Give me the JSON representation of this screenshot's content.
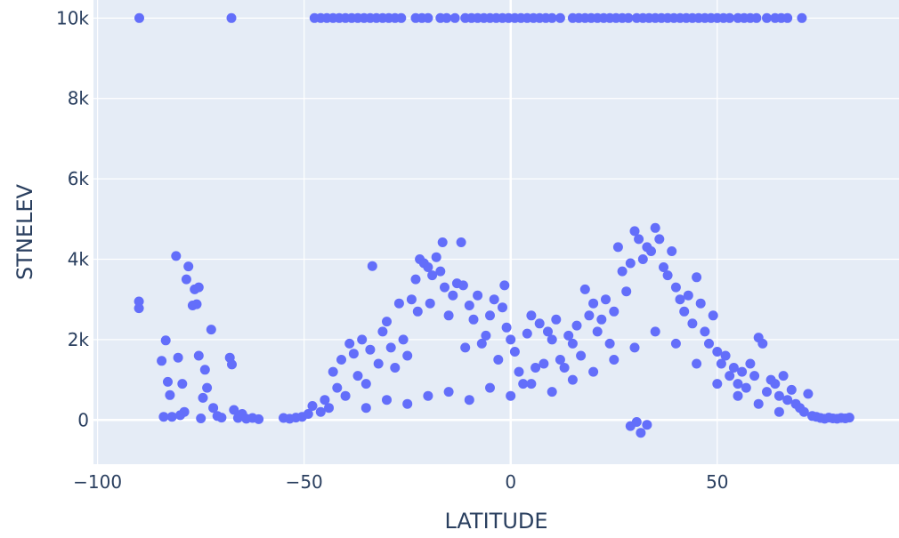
{
  "chart_data": {
    "type": "scatter",
    "title": "",
    "xlabel": "LATITUDE",
    "ylabel": "STNELEV",
    "xlim": [
      -101,
      94
    ],
    "ylim": [
      -1100,
      10450
    ],
    "x_ticks": [
      {
        "value": -100,
        "label": "−100"
      },
      {
        "value": -50,
        "label": "−50"
      },
      {
        "value": 0,
        "label": "0"
      },
      {
        "value": 50,
        "label": "50"
      }
    ],
    "y_ticks": [
      {
        "value": 0,
        "label": "0"
      },
      {
        "value": 2000,
        "label": "2k"
      },
      {
        "value": 4000,
        "label": "4k"
      },
      {
        "value": 6000,
        "label": "6k"
      },
      {
        "value": 8000,
        "label": "8k"
      },
      {
        "value": 10000,
        "label": "10k"
      }
    ],
    "grid": true,
    "legend": "none",
    "colors": {
      "marker": "#636efa",
      "plot_bg": "#e5ecf6",
      "grid": "#ffffff",
      "text": "#2a3f5f"
    },
    "series": [
      {
        "values": [
          [
            -89.9,
            10000
          ],
          [
            -67.6,
            10000
          ],
          [
            -47.5,
            10000
          ],
          [
            -46,
            10000
          ],
          [
            -44.5,
            10000
          ],
          [
            -43,
            10000
          ],
          [
            -41.5,
            10000
          ],
          [
            -40,
            10000
          ],
          [
            -38.5,
            10000
          ],
          [
            -37,
            10000
          ],
          [
            -35.5,
            10000
          ],
          [
            -34,
            10000
          ],
          [
            -32.5,
            10000
          ],
          [
            -31,
            10000
          ],
          [
            -29.5,
            10000
          ],
          [
            -28,
            10000
          ],
          [
            -26.5,
            10000
          ],
          [
            -23,
            10000
          ],
          [
            -21.5,
            10000
          ],
          [
            -20,
            10000
          ],
          [
            -17,
            10000
          ],
          [
            -15.5,
            10000
          ],
          [
            -13.5,
            10000
          ],
          [
            -11,
            10000
          ],
          [
            -9.5,
            10000
          ],
          [
            -8,
            10000
          ],
          [
            -6.5,
            10000
          ],
          [
            -5,
            10000
          ],
          [
            -3.5,
            10000
          ],
          [
            -2,
            10000
          ],
          [
            -0.5,
            10000
          ],
          [
            1,
            10000
          ],
          [
            2.5,
            10000
          ],
          [
            4,
            10000
          ],
          [
            5.5,
            10000
          ],
          [
            7,
            10000
          ],
          [
            8.5,
            10000
          ],
          [
            10,
            10000
          ],
          [
            12,
            10000
          ],
          [
            15,
            10000
          ],
          [
            16.5,
            10000
          ],
          [
            18,
            10000
          ],
          [
            19.5,
            10000
          ],
          [
            21,
            10000
          ],
          [
            22.5,
            10000
          ],
          [
            24,
            10000
          ],
          [
            25.5,
            10000
          ],
          [
            27,
            10000
          ],
          [
            28.5,
            10000
          ],
          [
            30.5,
            10000
          ],
          [
            32,
            10000
          ],
          [
            33.5,
            10000
          ],
          [
            35,
            10000
          ],
          [
            36.5,
            10000
          ],
          [
            38,
            10000
          ],
          [
            39.5,
            10000
          ],
          [
            41,
            10000
          ],
          [
            42.5,
            10000
          ],
          [
            44,
            10000
          ],
          [
            45.5,
            10000
          ],
          [
            47,
            10000
          ],
          [
            48.5,
            10000
          ],
          [
            50,
            10000
          ],
          [
            51.5,
            10000
          ],
          [
            53,
            10000
          ],
          [
            55,
            10000
          ],
          [
            56.5,
            10000
          ],
          [
            58,
            10000
          ],
          [
            59.5,
            10000
          ],
          [
            62,
            10000
          ],
          [
            64,
            10000
          ],
          [
            65.5,
            10000
          ],
          [
            67,
            10000
          ],
          [
            70.5,
            10000
          ],
          [
            -90,
            2950
          ],
          [
            -90,
            2780
          ],
          [
            -84.5,
            1470
          ],
          [
            -83.5,
            1980
          ],
          [
            -83,
            950
          ],
          [
            -82.5,
            620
          ],
          [
            -82,
            80
          ],
          [
            -81,
            4080
          ],
          [
            -80.5,
            1550
          ],
          [
            -79.5,
            900
          ],
          [
            -79,
            200
          ],
          [
            -78.5,
            3500
          ],
          [
            -78,
            3820
          ],
          [
            -77,
            2850
          ],
          [
            -76.5,
            3250
          ],
          [
            -76,
            2880
          ],
          [
            -75.5,
            3300
          ],
          [
            -75.5,
            1600
          ],
          [
            -74.5,
            550
          ],
          [
            -74,
            1250
          ],
          [
            -73.5,
            800
          ],
          [
            -72.5,
            2250
          ],
          [
            -72,
            300
          ],
          [
            -71,
            100
          ],
          [
            -70,
            60
          ],
          [
            -68,
            1550
          ],
          [
            -67.5,
            1380
          ],
          [
            -67,
            250
          ],
          [
            -66,
            50
          ],
          [
            -65,
            150
          ],
          [
            -64,
            30
          ],
          [
            -62.5,
            50
          ],
          [
            -61,
            20
          ],
          [
            -84,
            80
          ],
          [
            -80,
            120
          ],
          [
            -75,
            40
          ],
          [
            -55,
            50
          ],
          [
            -53.5,
            30
          ],
          [
            -52,
            60
          ],
          [
            -50.5,
            80
          ],
          [
            -49,
            150
          ],
          [
            -48,
            350
          ],
          [
            -46,
            200
          ],
          [
            -45,
            500
          ],
          [
            -44,
            300
          ],
          [
            -43,
            1200
          ],
          [
            -42,
            800
          ],
          [
            -41,
            1500
          ],
          [
            -40,
            600
          ],
          [
            -39,
            1900
          ],
          [
            -38,
            1650
          ],
          [
            -37,
            1100
          ],
          [
            -36,
            2000
          ],
          [
            -35,
            900
          ],
          [
            -34,
            1750
          ],
          [
            -33.5,
            3830
          ],
          [
            -32,
            1400
          ],
          [
            -31,
            2200
          ],
          [
            -30,
            2450
          ],
          [
            -29,
            1800
          ],
          [
            -28,
            1300
          ],
          [
            -27,
            2900
          ],
          [
            -26,
            2000
          ],
          [
            -25,
            1600
          ],
          [
            -24,
            3000
          ],
          [
            -23,
            3500
          ],
          [
            -22.5,
            2700
          ],
          [
            -22,
            4000
          ],
          [
            -21,
            3900
          ],
          [
            -20,
            3800
          ],
          [
            -19.5,
            2900
          ],
          [
            -19,
            3600
          ],
          [
            -18,
            4050
          ],
          [
            -17,
            3700
          ],
          [
            -16.5,
            4420
          ],
          [
            -16,
            3300
          ],
          [
            -15,
            2600
          ],
          [
            -14,
            3100
          ],
          [
            -13,
            3400
          ],
          [
            -12,
            4420
          ],
          [
            -11.5,
            3350
          ],
          [
            -11,
            1800
          ],
          [
            -10,
            2850
          ],
          [
            -9,
            2500
          ],
          [
            -8,
            3100
          ],
          [
            -7,
            1900
          ],
          [
            -6,
            2100
          ],
          [
            -5,
            2600
          ],
          [
            -4,
            3000
          ],
          [
            -3,
            1500
          ],
          [
            -2,
            2800
          ],
          [
            -1.5,
            3350
          ],
          [
            -1,
            2300
          ],
          [
            0,
            2000
          ],
          [
            1,
            1700
          ],
          [
            2,
            1200
          ],
          [
            3,
            900
          ],
          [
            4,
            2150
          ],
          [
            5,
            2600
          ],
          [
            6,
            1300
          ],
          [
            7,
            2400
          ],
          [
            8,
            1400
          ],
          [
            9,
            2200
          ],
          [
            10,
            2000
          ],
          [
            11,
            2500
          ],
          [
            12,
            1500
          ],
          [
            13,
            1300
          ],
          [
            14,
            2100
          ],
          [
            15,
            1900
          ],
          [
            16,
            2350
          ],
          [
            17,
            1600
          ],
          [
            18,
            3250
          ],
          [
            19,
            2600
          ],
          [
            20,
            2900
          ],
          [
            21,
            2200
          ],
          [
            22,
            2500
          ],
          [
            23,
            3000
          ],
          [
            24,
            1900
          ],
          [
            25,
            2700
          ],
          [
            26,
            4300
          ],
          [
            27,
            3700
          ],
          [
            28,
            3200
          ],
          [
            29,
            3900
          ],
          [
            30,
            4700
          ],
          [
            31,
            4500
          ],
          [
            32,
            4000
          ],
          [
            33,
            4300
          ],
          [
            34,
            4200
          ],
          [
            35,
            4780
          ],
          [
            36,
            4500
          ],
          [
            37,
            3800
          ],
          [
            38,
            3600
          ],
          [
            39,
            4200
          ],
          [
            40,
            3300
          ],
          [
            41,
            3000
          ],
          [
            42,
            2700
          ],
          [
            43,
            3100
          ],
          [
            44,
            2400
          ],
          [
            45,
            3550
          ],
          [
            46,
            2900
          ],
          [
            47,
            2200
          ],
          [
            48,
            1900
          ],
          [
            49,
            2600
          ],
          [
            50,
            1700
          ],
          [
            51,
            1400
          ],
          [
            52,
            1600
          ],
          [
            53,
            1100
          ],
          [
            54,
            1300
          ],
          [
            55,
            900
          ],
          [
            56,
            1200
          ],
          [
            57,
            800
          ],
          [
            58,
            1400
          ],
          [
            59,
            1100
          ],
          [
            60,
            2050
          ],
          [
            61,
            1900
          ],
          [
            62,
            700
          ],
          [
            63,
            1000
          ],
          [
            64,
            900
          ],
          [
            65,
            600
          ],
          [
            66,
            1100
          ],
          [
            67,
            500
          ],
          [
            68,
            750
          ],
          [
            69,
            400
          ],
          [
            70,
            300
          ],
          [
            71,
            200
          ],
          [
            72,
            650
          ],
          [
            73,
            100
          ],
          [
            74,
            80
          ],
          [
            75,
            50
          ],
          [
            76,
            30
          ],
          [
            77,
            60
          ],
          [
            78,
            40
          ],
          [
            79,
            30
          ],
          [
            80,
            50
          ],
          [
            81,
            40
          ],
          [
            82,
            60
          ],
          [
            31.5,
            -320
          ],
          [
            33,
            -120
          ],
          [
            30.5,
            -50
          ],
          [
            29,
            -150
          ],
          [
            -35,
            300
          ],
          [
            -30,
            500
          ],
          [
            -25,
            400
          ],
          [
            -20,
            600
          ],
          [
            -15,
            700
          ],
          [
            -10,
            500
          ],
          [
            -5,
            800
          ],
          [
            0,
            600
          ],
          [
            5,
            900
          ],
          [
            10,
            700
          ],
          [
            15,
            1000
          ],
          [
            20,
            1200
          ],
          [
            25,
            1500
          ],
          [
            30,
            1800
          ],
          [
            35,
            2200
          ],
          [
            40,
            1900
          ],
          [
            45,
            1400
          ],
          [
            50,
            900
          ],
          [
            55,
            600
          ],
          [
            60,
            400
          ],
          [
            65,
            200
          ]
        ]
      }
    ]
  }
}
